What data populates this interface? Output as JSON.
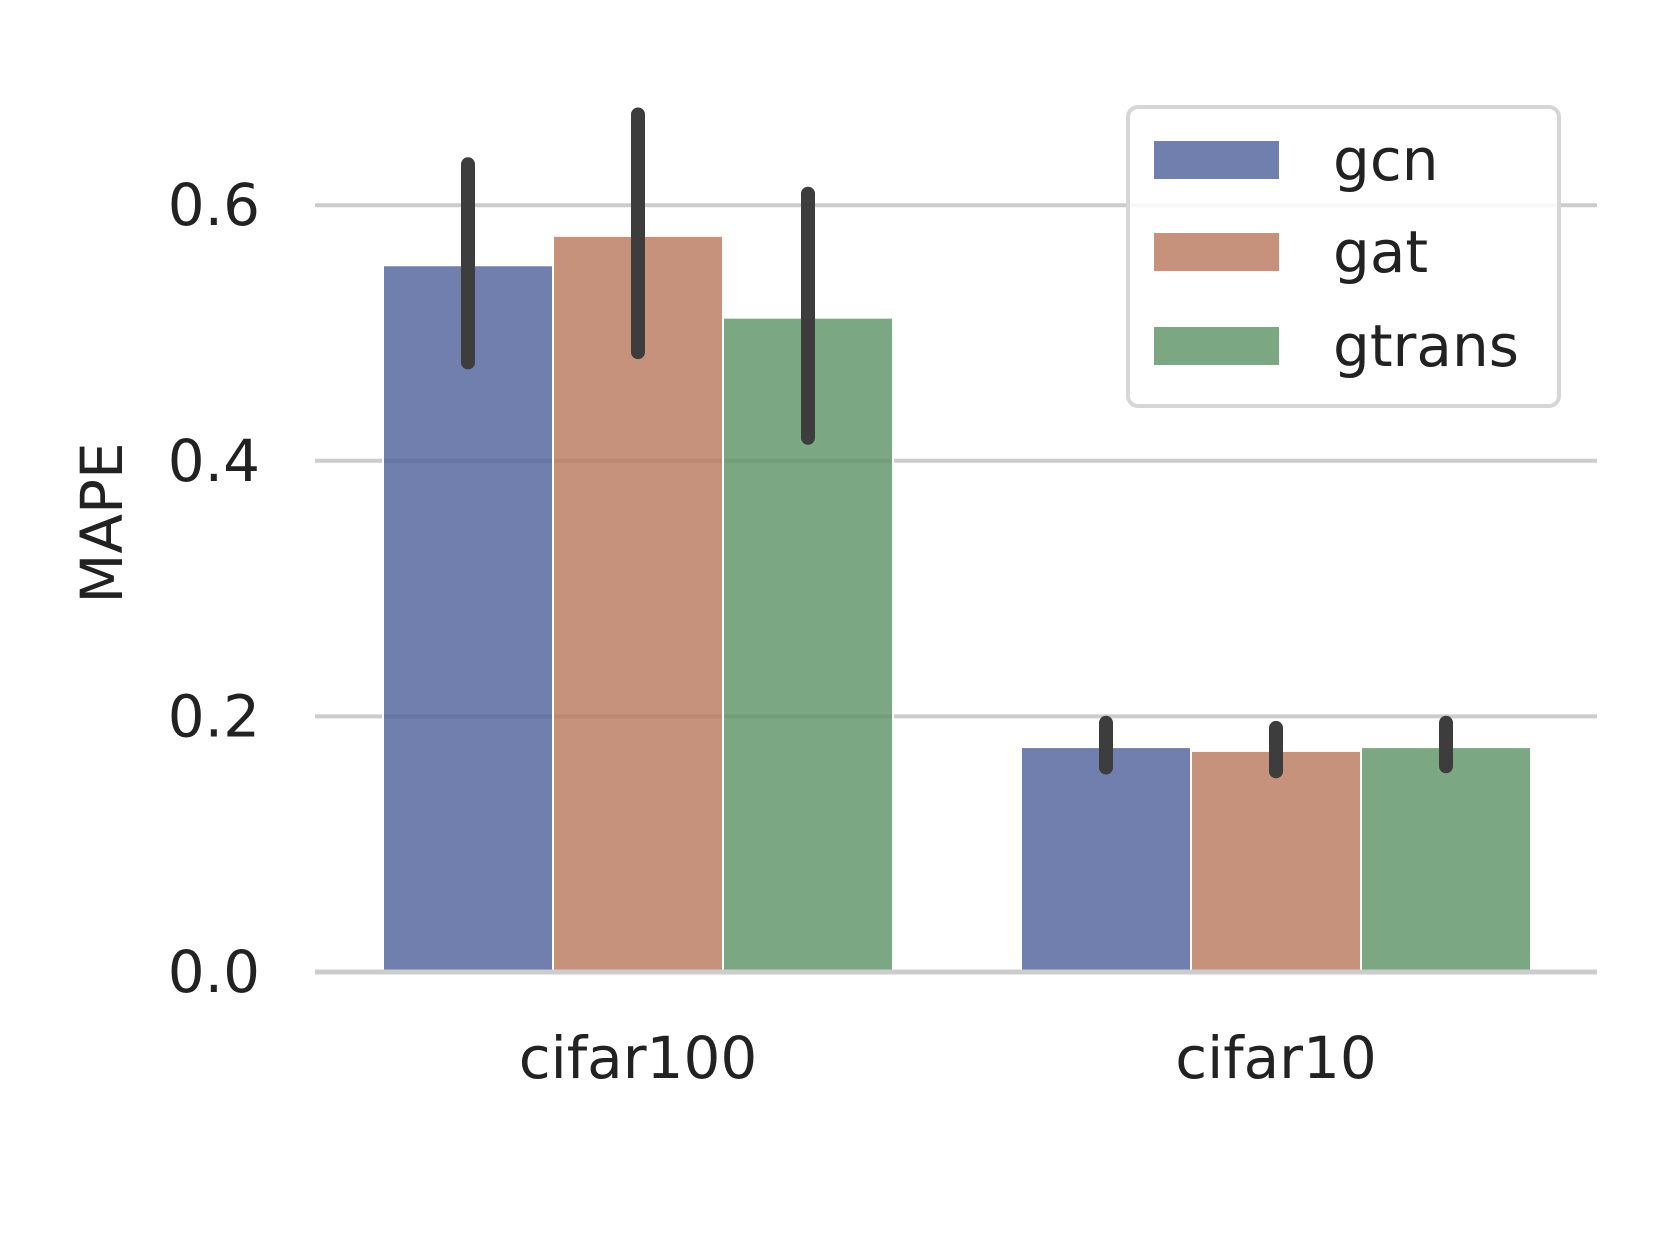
{
  "chart_data": {
    "type": "bar",
    "title": "",
    "xlabel": "",
    "ylabel": "MAPE",
    "categories": [
      "cifar100",
      "cifar10"
    ],
    "ylim": [
      0,
      0.67
    ],
    "yticks": [
      "0.0",
      "0.2",
      "0.4",
      "0.6"
    ],
    "ytick_values": [
      0.0,
      0.2,
      0.4,
      0.6
    ],
    "grid": "horizontal",
    "legend_position": "top-right",
    "series": [
      {
        "name": "gcn",
        "color": "#4c5f98",
        "values": [
          0.553,
          0.176
        ],
        "err_low": [
          0.477,
          0.16
        ],
        "err_high": [
          0.632,
          0.195
        ]
      },
      {
        "name": "gat",
        "color": "#b8775a",
        "values": [
          0.576,
          0.173
        ],
        "err_low": [
          0.485,
          0.157
        ],
        "err_high": [
          0.671,
          0.191
        ]
      },
      {
        "name": "gtrans",
        "color": "#5a9264",
        "values": [
          0.512,
          0.176
        ],
        "err_low": [
          0.418,
          0.161
        ],
        "err_high": [
          0.609,
          0.195
        ]
      }
    ]
  }
}
